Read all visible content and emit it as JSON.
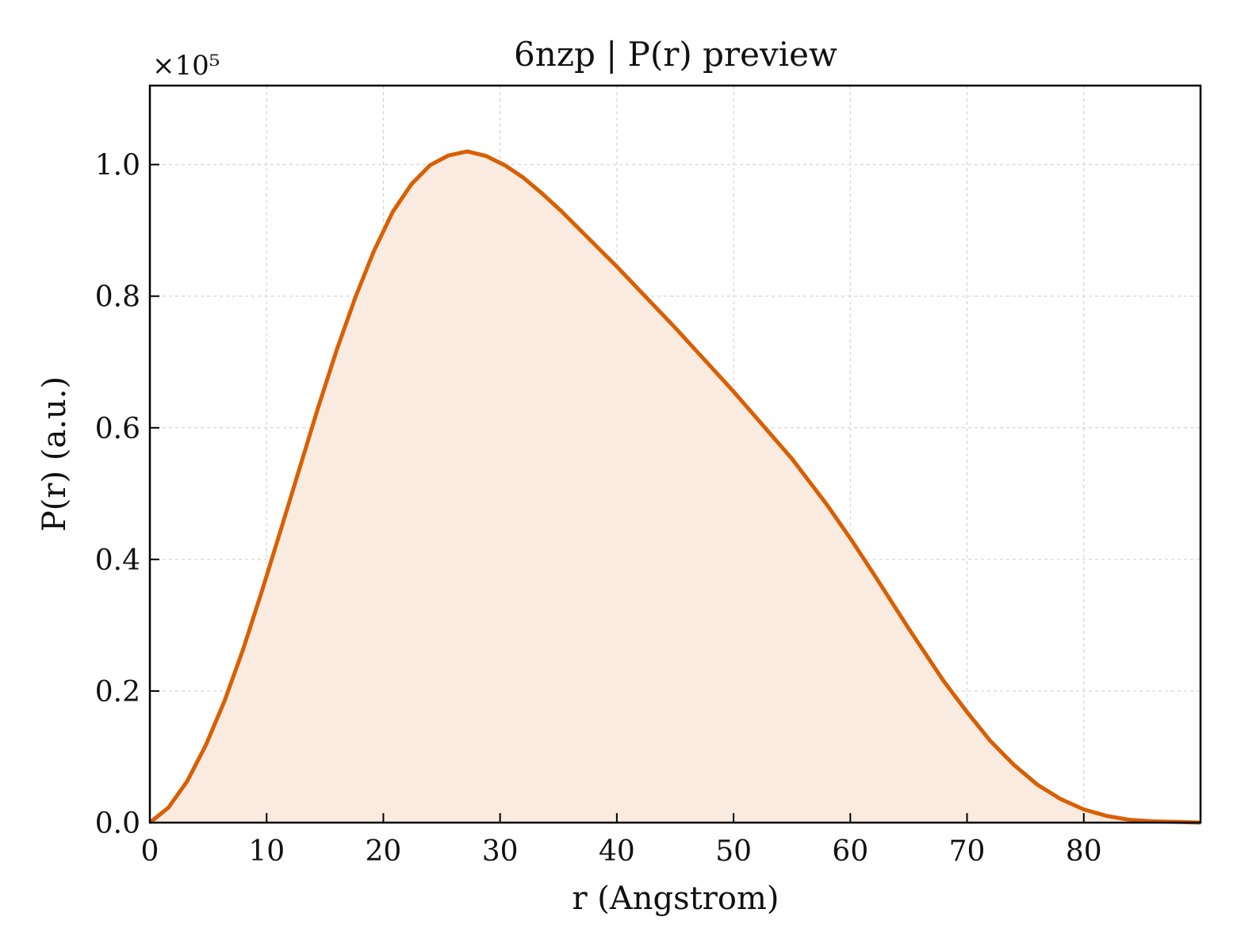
{
  "chart_data": {
    "type": "area",
    "title": "6nzp | P(r) preview",
    "xlabel": "r (Angstrom)",
    "ylabel": "P(r) (a.u.)",
    "y_multiplier": "×10⁵",
    "xlim": [
      0,
      90
    ],
    "ylim": [
      0,
      1.12
    ],
    "x_ticks": [
      0,
      10,
      20,
      30,
      40,
      50,
      60,
      70,
      80
    ],
    "y_ticks": [
      0.0,
      0.2,
      0.4,
      0.6,
      0.8,
      1.0
    ],
    "x_tick_labels": [
      "0",
      "10",
      "20",
      "30",
      "40",
      "50",
      "60",
      "70",
      "80"
    ],
    "y_tick_labels": [
      "0.0",
      "0.2",
      "0.4",
      "0.6",
      "0.8",
      "1.0"
    ],
    "grid": true,
    "colors": {
      "line": "#d95f02",
      "fill": "#f9ebe0"
    },
    "series": [
      {
        "x": [
          0,
          1.6,
          3.2,
          4.8,
          6.4,
          8.0,
          9.6,
          11.2,
          12.8,
          14.4,
          16.0,
          17.6,
          19.2,
          20.8,
          22.4,
          24.0,
          25.6,
          27.2,
          28.8,
          30.4,
          32.0,
          33.6,
          35.2,
          40.0,
          45.0,
          50.0,
          55.0,
          58.0,
          60.0,
          62.0,
          65.0,
          68.0,
          70.0,
          72.0,
          74.0,
          76.0,
          78.0,
          80.0,
          82.0,
          84.0,
          86.0,
          88.0,
          90.0
        ],
        "y": [
          0.0,
          0.023,
          0.063,
          0.118,
          0.185,
          0.264,
          0.352,
          0.444,
          0.537,
          0.63,
          0.718,
          0.798,
          0.869,
          0.928,
          0.97,
          0.999,
          1.014,
          1.02,
          1.013,
          0.999,
          0.98,
          0.956,
          0.93,
          0.845,
          0.752,
          0.655,
          0.553,
          0.483,
          0.432,
          0.378,
          0.295,
          0.215,
          0.168,
          0.124,
          0.088,
          0.058,
          0.036,
          0.02,
          0.01,
          0.004,
          0.002,
          0.001,
          0.0
        ]
      }
    ]
  }
}
